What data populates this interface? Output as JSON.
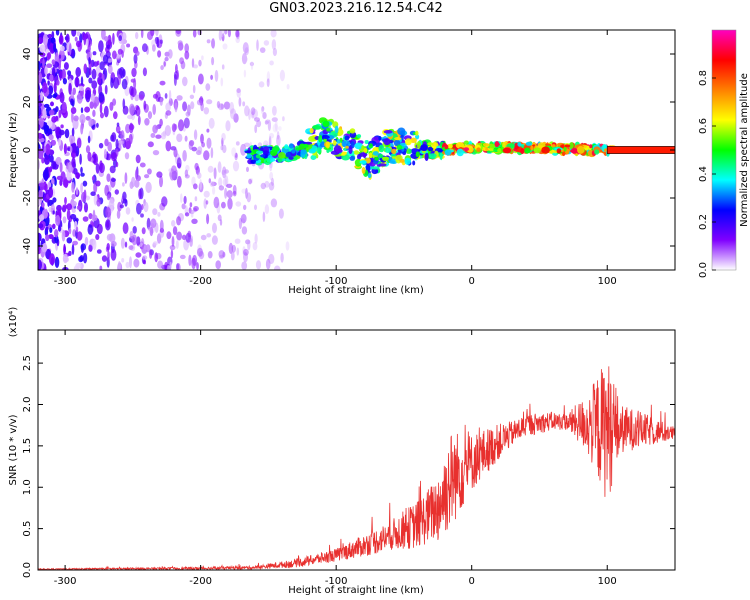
{
  "title": "GN03.2023.216.12.54.C42",
  "chart_data": [
    {
      "type": "heatmap",
      "xlabel": "Height of straight line (km)",
      "ylabel": "Frequency (Hz)",
      "xlim": [
        -320,
        150
      ],
      "ylim": [
        -50,
        50
      ],
      "xticks": [
        -300,
        -200,
        -100,
        0,
        100
      ],
      "yticks": [
        -40,
        -20,
        0,
        20,
        40
      ],
      "colorbar": {
        "label": "Normalized spectral amplitude",
        "range": [
          0.0,
          1.0
        ],
        "ticks": [
          0.0,
          0.2,
          0.4,
          0.6,
          0.8
        ],
        "colormap": [
          "#ffffff",
          "#8000ff",
          "#0000ff",
          "#00ffff",
          "#00ff00",
          "#ffff00",
          "#ff8000",
          "#ff0000",
          "#ff00c0"
        ]
      },
      "ridge": [
        {
          "x": -160,
          "y": -2
        },
        {
          "x": -140,
          "y": -2
        },
        {
          "x": -120,
          "y": 1
        },
        {
          "x": -110,
          "y": 6
        },
        {
          "x": -100,
          "y": 5
        },
        {
          "x": -90,
          "y": 2
        },
        {
          "x": -75,
          "y": -4
        },
        {
          "x": -60,
          "y": 2
        },
        {
          "x": -40,
          "y": 0
        },
        {
          "x": -20,
          "y": 0
        },
        {
          "x": 0,
          "y": 1
        },
        {
          "x": 50,
          "y": 1
        },
        {
          "x": 100,
          "y": 0
        },
        {
          "x": 150,
          "y": 0
        }
      ],
      "grid": false
    },
    {
      "type": "line",
      "xlabel": "Height of straight line (km)",
      "ylabel": "SNR (10 * v/v)",
      "yscale_note": "(x10⁴)",
      "xlim": [
        -320,
        150
      ],
      "ylim": [
        0,
        2.9
      ],
      "xticks": [
        -300,
        -200,
        -100,
        0,
        100
      ],
      "yticks": [
        0.0,
        0.5,
        1.0,
        1.5,
        2.0,
        2.5
      ],
      "color": "#e8302e",
      "envelope": [
        {
          "x": -320,
          "y": 0.01
        },
        {
          "x": -200,
          "y": 0.02
        },
        {
          "x": -160,
          "y": 0.03
        },
        {
          "x": -130,
          "y": 0.08
        },
        {
          "x": -100,
          "y": 0.18
        },
        {
          "x": -70,
          "y": 0.35
        },
        {
          "x": -40,
          "y": 0.55
        },
        {
          "x": -25,
          "y": 0.75
        },
        {
          "x": -15,
          "y": 1.1
        },
        {
          "x": 0,
          "y": 1.3
        },
        {
          "x": 20,
          "y": 1.55
        },
        {
          "x": 40,
          "y": 1.75
        },
        {
          "x": 60,
          "y": 1.8
        },
        {
          "x": 80,
          "y": 1.78
        },
        {
          "x": 100,
          "y": 1.7
        },
        {
          "x": 120,
          "y": 1.7
        },
        {
          "x": 150,
          "y": 1.65
        }
      ],
      "noise": [
        {
          "x": -320,
          "a": 0.005
        },
        {
          "x": -160,
          "a": 0.02
        },
        {
          "x": -100,
          "a": 0.08
        },
        {
          "x": -60,
          "a": 0.18
        },
        {
          "x": -30,
          "a": 0.35
        },
        {
          "x": -15,
          "a": 0.6
        },
        {
          "x": 0,
          "a": 0.35
        },
        {
          "x": 30,
          "a": 0.15
        },
        {
          "x": 70,
          "a": 0.1
        },
        {
          "x": 85,
          "a": 0.35
        },
        {
          "x": 100,
          "a": 0.9
        },
        {
          "x": 110,
          "a": 0.3
        },
        {
          "x": 150,
          "a": 0.08
        }
      ],
      "grid": false
    }
  ]
}
